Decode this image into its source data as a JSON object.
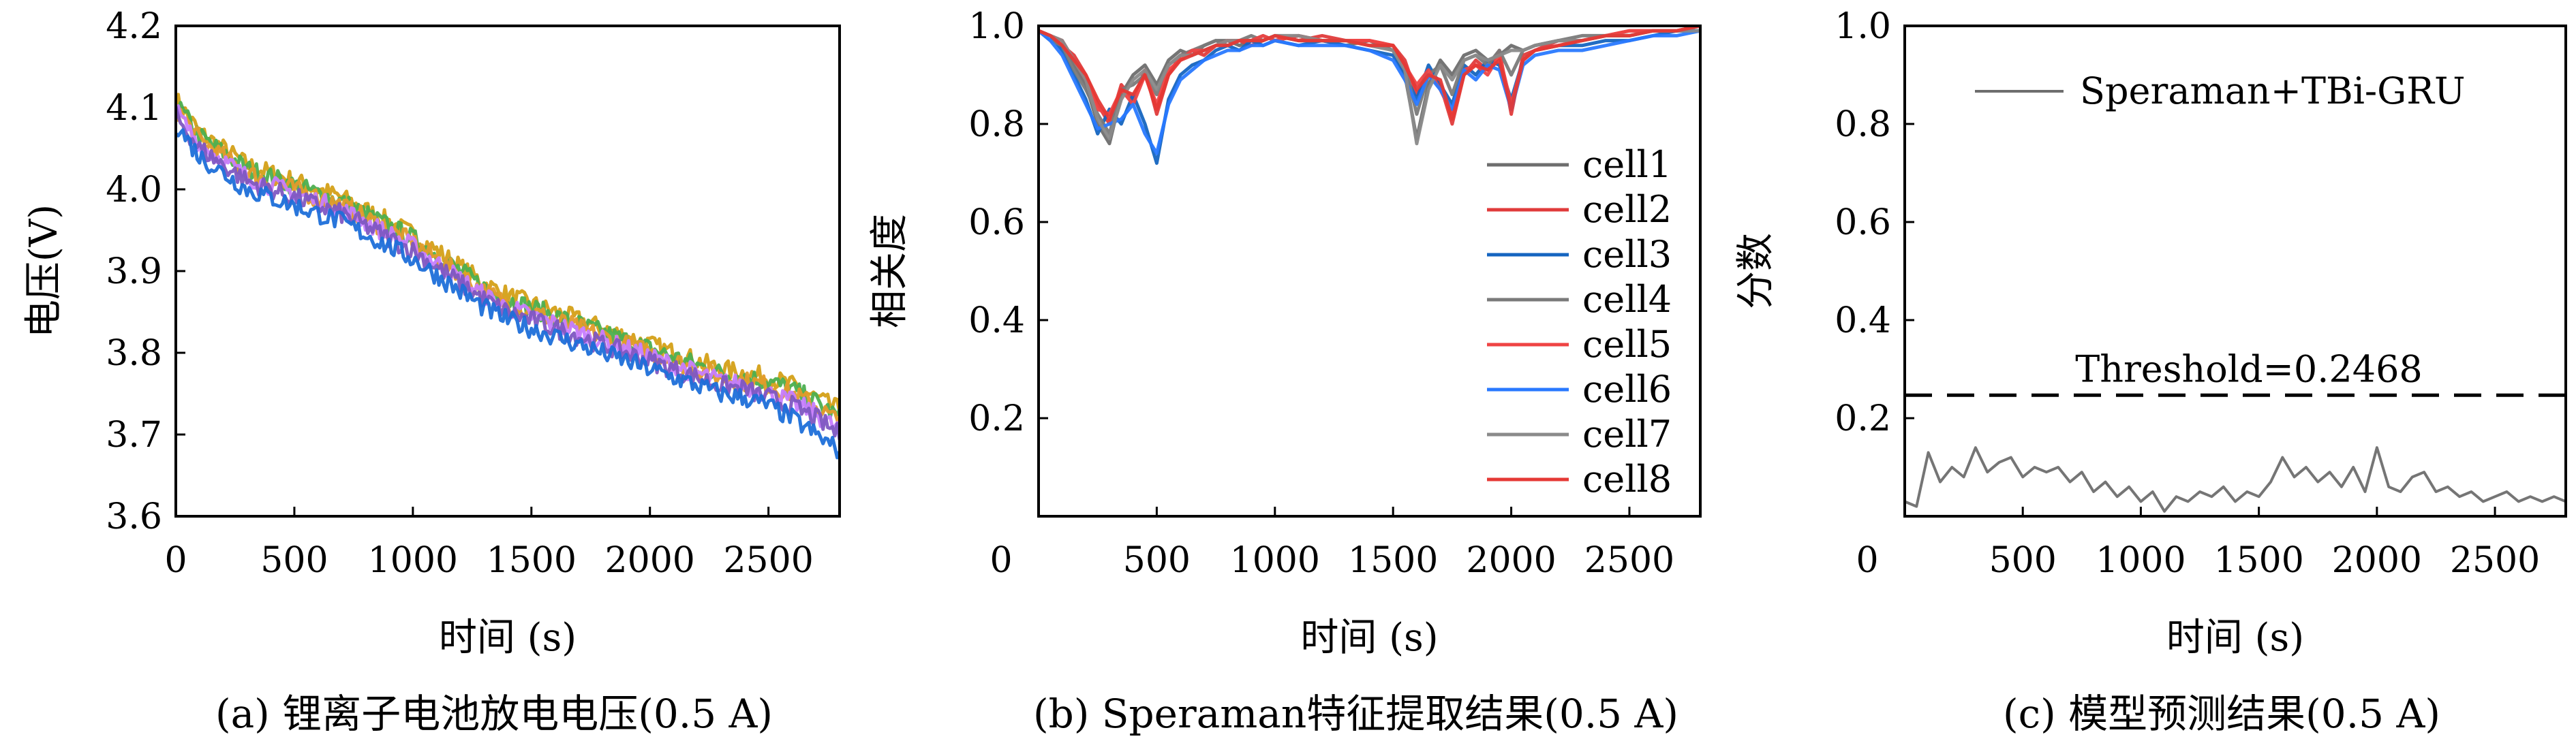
{
  "chart_data": [
    {
      "panel": "a",
      "type": "line",
      "caption": "(a) 锂离子电池放电电压(0.5 A)",
      "xlabel": "时间 (s)",
      "ylabel": "电压(V)",
      "xlim": [
        0,
        2800
      ],
      "ylim": [
        3.6,
        4.2
      ],
      "x_ticks": [
        "0",
        "500",
        "1000",
        "1500",
        "2000",
        "2500"
      ],
      "y_ticks": [
        "3.6",
        "3.7",
        "3.8",
        "3.9",
        "4.0",
        "4.1",
        "4.2"
      ],
      "legend": "none",
      "grid": false,
      "noise_amp": 0.012,
      "x": [
        0,
        100,
        200,
        300,
        400,
        500,
        600,
        700,
        800,
        900,
        1000,
        1100,
        1200,
        1300,
        1400,
        1500,
        1600,
        1700,
        1800,
        1900,
        2000,
        2100,
        2200,
        2300,
        2400,
        2500,
        2600,
        2700,
        2800
      ],
      "series": [
        {
          "color": "#d4a017",
          "values": [
            4.11,
            4.07,
            4.05,
            4.03,
            4.02,
            4.01,
            4.0,
            3.99,
            3.975,
            3.96,
            3.945,
            3.925,
            3.905,
            3.885,
            3.87,
            3.86,
            3.85,
            3.84,
            3.83,
            3.82,
            3.81,
            3.8,
            3.79,
            3.78,
            3.775,
            3.77,
            3.76,
            3.745,
            3.73
          ]
        },
        {
          "color": "#4caf50",
          "values": [
            4.105,
            4.065,
            4.045,
            4.025,
            4.015,
            4.005,
            3.995,
            3.985,
            3.97,
            3.955,
            3.94,
            3.92,
            3.9,
            3.88,
            3.865,
            3.855,
            3.845,
            3.835,
            3.825,
            3.815,
            3.805,
            3.795,
            3.785,
            3.775,
            3.77,
            3.765,
            3.755,
            3.74,
            3.72
          ]
        },
        {
          "color": "#e39b2b",
          "values": [
            4.1,
            4.06,
            4.04,
            4.02,
            4.01,
            4.0,
            3.99,
            3.98,
            3.965,
            3.95,
            3.935,
            3.915,
            3.895,
            3.875,
            3.86,
            3.85,
            3.84,
            3.83,
            3.82,
            3.81,
            3.8,
            3.79,
            3.78,
            3.77,
            3.765,
            3.76,
            3.75,
            3.735,
            3.715
          ]
        },
        {
          "color": "#c77dff",
          "values": [
            4.095,
            4.055,
            4.035,
            4.015,
            4.005,
            3.995,
            3.985,
            3.975,
            3.96,
            3.945,
            3.93,
            3.91,
            3.89,
            3.87,
            3.855,
            3.845,
            3.835,
            3.825,
            3.815,
            3.805,
            3.795,
            3.785,
            3.775,
            3.765,
            3.76,
            3.75,
            3.74,
            3.725,
            3.705
          ]
        },
        {
          "color": "#7e57c2",
          "values": [
            4.09,
            4.05,
            4.03,
            4.01,
            4.0,
            3.99,
            3.98,
            3.97,
            3.955,
            3.94,
            3.925,
            3.905,
            3.885,
            3.865,
            3.85,
            3.84,
            3.83,
            3.82,
            3.81,
            3.8,
            3.79,
            3.78,
            3.77,
            3.76,
            3.755,
            3.745,
            3.735,
            3.72,
            3.7
          ]
        },
        {
          "color": "#1e6fd9",
          "values": [
            4.08,
            4.04,
            4.02,
            4.0,
            3.99,
            3.98,
            3.97,
            3.96,
            3.945,
            3.93,
            3.915,
            3.895,
            3.875,
            3.855,
            3.84,
            3.83,
            3.82,
            3.81,
            3.8,
            3.79,
            3.78,
            3.77,
            3.76,
            3.75,
            3.745,
            3.735,
            3.72,
            3.7,
            3.68
          ]
        }
      ]
    },
    {
      "panel": "b",
      "type": "line",
      "caption": "(b) Speraman特征提取结果(0.5 A)",
      "xlabel": "时间 (s)",
      "ylabel": "相关度",
      "xlim": [
        0,
        2800
      ],
      "ylim": [
        0,
        1.0
      ],
      "x_ticks": [
        "0",
        "500",
        "1000",
        "1500",
        "2000",
        "2500"
      ],
      "y_ticks": [
        "0.2",
        "0.4",
        "0.6",
        "0.8",
        "1.0"
      ],
      "legend": "right",
      "grid": false,
      "x": [
        0,
        50,
        100,
        150,
        200,
        250,
        300,
        350,
        400,
        450,
        500,
        550,
        600,
        650,
        700,
        750,
        800,
        850,
        900,
        950,
        1000,
        1100,
        1200,
        1300,
        1400,
        1500,
        1550,
        1600,
        1650,
        1700,
        1750,
        1800,
        1850,
        1900,
        1950,
        2000,
        2050,
        2100,
        2200,
        2300,
        2400,
        2500,
        2600,
        2700,
        2800
      ],
      "series": [
        {
          "name": "cell1",
          "color": "#6e6e6e",
          "values": [
            0.99,
            0.98,
            0.97,
            0.92,
            0.88,
            0.8,
            0.76,
            0.86,
            0.9,
            0.92,
            0.88,
            0.93,
            0.95,
            0.94,
            0.96,
            0.97,
            0.97,
            0.96,
            0.97,
            0.98,
            0.97,
            0.98,
            0.97,
            0.96,
            0.97,
            0.95,
            0.9,
            0.77,
            0.88,
            0.93,
            0.9,
            0.94,
            0.95,
            0.93,
            0.94,
            0.96,
            0.95,
            0.96,
            0.97,
            0.97,
            0.98,
            0.98,
            0.99,
            0.99,
            0.99
          ]
        },
        {
          "name": "cell2",
          "color": "#e03b3b",
          "values": [
            0.99,
            0.98,
            0.96,
            0.94,
            0.9,
            0.84,
            0.8,
            0.88,
            0.85,
            0.91,
            0.82,
            0.9,
            0.94,
            0.95,
            0.94,
            0.96,
            0.97,
            0.97,
            0.96,
            0.97,
            0.98,
            0.97,
            0.98,
            0.97,
            0.97,
            0.96,
            0.93,
            0.86,
            0.9,
            0.88,
            0.8,
            0.9,
            0.93,
            0.91,
            0.95,
            0.82,
            0.94,
            0.95,
            0.97,
            0.97,
            0.98,
            0.99,
            0.99,
            0.99,
            1.0
          ]
        },
        {
          "name": "cell3",
          "color": "#1565c0",
          "values": [
            0.99,
            0.98,
            0.95,
            0.9,
            0.85,
            0.78,
            0.83,
            0.8,
            0.86,
            0.8,
            0.72,
            0.85,
            0.9,
            0.92,
            0.93,
            0.95,
            0.96,
            0.95,
            0.97,
            0.96,
            0.97,
            0.96,
            0.97,
            0.96,
            0.95,
            0.94,
            0.9,
            0.85,
            0.92,
            0.88,
            0.84,
            0.92,
            0.9,
            0.93,
            0.92,
            0.85,
            0.93,
            0.95,
            0.96,
            0.96,
            0.97,
            0.97,
            0.98,
            0.99,
            0.99
          ]
        },
        {
          "name": "cell4",
          "color": "#7a7a7a",
          "values": [
            0.99,
            0.97,
            0.96,
            0.91,
            0.87,
            0.82,
            0.78,
            0.87,
            0.88,
            0.9,
            0.86,
            0.92,
            0.94,
            0.95,
            0.96,
            0.97,
            0.96,
            0.97,
            0.98,
            0.97,
            0.98,
            0.97,
            0.97,
            0.97,
            0.96,
            0.96,
            0.92,
            0.82,
            0.9,
            0.92,
            0.86,
            0.93,
            0.94,
            0.92,
            0.95,
            0.9,
            0.95,
            0.96,
            0.97,
            0.98,
            0.98,
            0.98,
            0.99,
            0.99,
            1.0
          ]
        },
        {
          "name": "cell5",
          "color": "#ef4444",
          "values": [
            0.99,
            0.98,
            0.97,
            0.93,
            0.89,
            0.83,
            0.82,
            0.87,
            0.84,
            0.9,
            0.84,
            0.91,
            0.93,
            0.95,
            0.95,
            0.96,
            0.97,
            0.97,
            0.97,
            0.98,
            0.97,
            0.98,
            0.97,
            0.97,
            0.97,
            0.96,
            0.92,
            0.88,
            0.91,
            0.87,
            0.82,
            0.91,
            0.92,
            0.9,
            0.94,
            0.84,
            0.93,
            0.95,
            0.96,
            0.97,
            0.98,
            0.99,
            0.99,
            0.99,
            1.0
          ]
        },
        {
          "name": "cell6",
          "color": "#2979ff",
          "values": [
            0.99,
            0.97,
            0.94,
            0.89,
            0.84,
            0.79,
            0.8,
            0.81,
            0.84,
            0.78,
            0.74,
            0.84,
            0.89,
            0.91,
            0.93,
            0.94,
            0.95,
            0.95,
            0.96,
            0.96,
            0.97,
            0.96,
            0.96,
            0.96,
            0.95,
            0.93,
            0.89,
            0.84,
            0.9,
            0.87,
            0.83,
            0.91,
            0.89,
            0.92,
            0.91,
            0.83,
            0.92,
            0.94,
            0.95,
            0.95,
            0.96,
            0.97,
            0.98,
            0.98,
            0.99
          ]
        },
        {
          "name": "cell7",
          "color": "#8a8a8a",
          "values": [
            0.99,
            0.98,
            0.97,
            0.93,
            0.89,
            0.81,
            0.77,
            0.85,
            0.89,
            0.91,
            0.87,
            0.92,
            0.94,
            0.94,
            0.95,
            0.96,
            0.97,
            0.97,
            0.97,
            0.97,
            0.98,
            0.98,
            0.97,
            0.97,
            0.96,
            0.95,
            0.91,
            0.76,
            0.87,
            0.92,
            0.89,
            0.93,
            0.94,
            0.93,
            0.94,
            0.95,
            0.95,
            0.96,
            0.97,
            0.97,
            0.98,
            0.98,
            0.99,
            0.99,
            0.99
          ]
        },
        {
          "name": "cell8",
          "color": "#e53935",
          "values": [
            0.99,
            0.98,
            0.96,
            0.93,
            0.9,
            0.85,
            0.81,
            0.87,
            0.86,
            0.9,
            0.83,
            0.9,
            0.93,
            0.94,
            0.95,
            0.96,
            0.96,
            0.97,
            0.97,
            0.97,
            0.98,
            0.97,
            0.97,
            0.97,
            0.96,
            0.96,
            0.92,
            0.87,
            0.9,
            0.89,
            0.81,
            0.9,
            0.92,
            0.91,
            0.93,
            0.83,
            0.93,
            0.95,
            0.96,
            0.97,
            0.98,
            0.98,
            0.99,
            0.99,
            1.0
          ]
        }
      ]
    },
    {
      "panel": "c",
      "type": "line",
      "caption": "(c) 模型预测结果(0.5 A)",
      "xlabel": "时间 (s)",
      "ylabel": "分数",
      "xlim": [
        0,
        2800
      ],
      "ylim": [
        0,
        1.0
      ],
      "x_ticks": [
        "0",
        "500",
        "1000",
        "1500",
        "2000",
        "2500"
      ],
      "y_ticks": [
        "0.2",
        "0.4",
        "0.6",
        "0.8",
        "1.0"
      ],
      "legend": "top-right",
      "grid": false,
      "threshold": {
        "value": 0.2468,
        "label": "Threshold=0.2468"
      },
      "x": [
        0,
        50,
        100,
        150,
        200,
        250,
        300,
        350,
        400,
        450,
        500,
        550,
        600,
        650,
        700,
        750,
        800,
        850,
        900,
        950,
        1000,
        1050,
        1100,
        1150,
        1200,
        1250,
        1300,
        1350,
        1400,
        1450,
        1500,
        1550,
        1600,
        1650,
        1700,
        1750,
        1800,
        1850,
        1900,
        1950,
        2000,
        2050,
        2100,
        2150,
        2200,
        2250,
        2300,
        2350,
        2400,
        2450,
        2500,
        2550,
        2600,
        2650,
        2700,
        2750,
        2800
      ],
      "series": [
        {
          "name": "Speraman+TBi-GRU",
          "color": "#6e6e6e",
          "values": [
            0.03,
            0.02,
            0.13,
            0.07,
            0.1,
            0.08,
            0.14,
            0.09,
            0.11,
            0.12,
            0.08,
            0.1,
            0.09,
            0.1,
            0.07,
            0.09,
            0.05,
            0.07,
            0.04,
            0.06,
            0.03,
            0.05,
            0.01,
            0.04,
            0.03,
            0.05,
            0.04,
            0.06,
            0.03,
            0.05,
            0.04,
            0.07,
            0.12,
            0.08,
            0.1,
            0.07,
            0.09,
            0.06,
            0.1,
            0.05,
            0.14,
            0.06,
            0.05,
            0.08,
            0.09,
            0.05,
            0.06,
            0.04,
            0.05,
            0.03,
            0.04,
            0.05,
            0.03,
            0.04,
            0.03,
            0.04,
            0.03
          ]
        }
      ]
    }
  ]
}
